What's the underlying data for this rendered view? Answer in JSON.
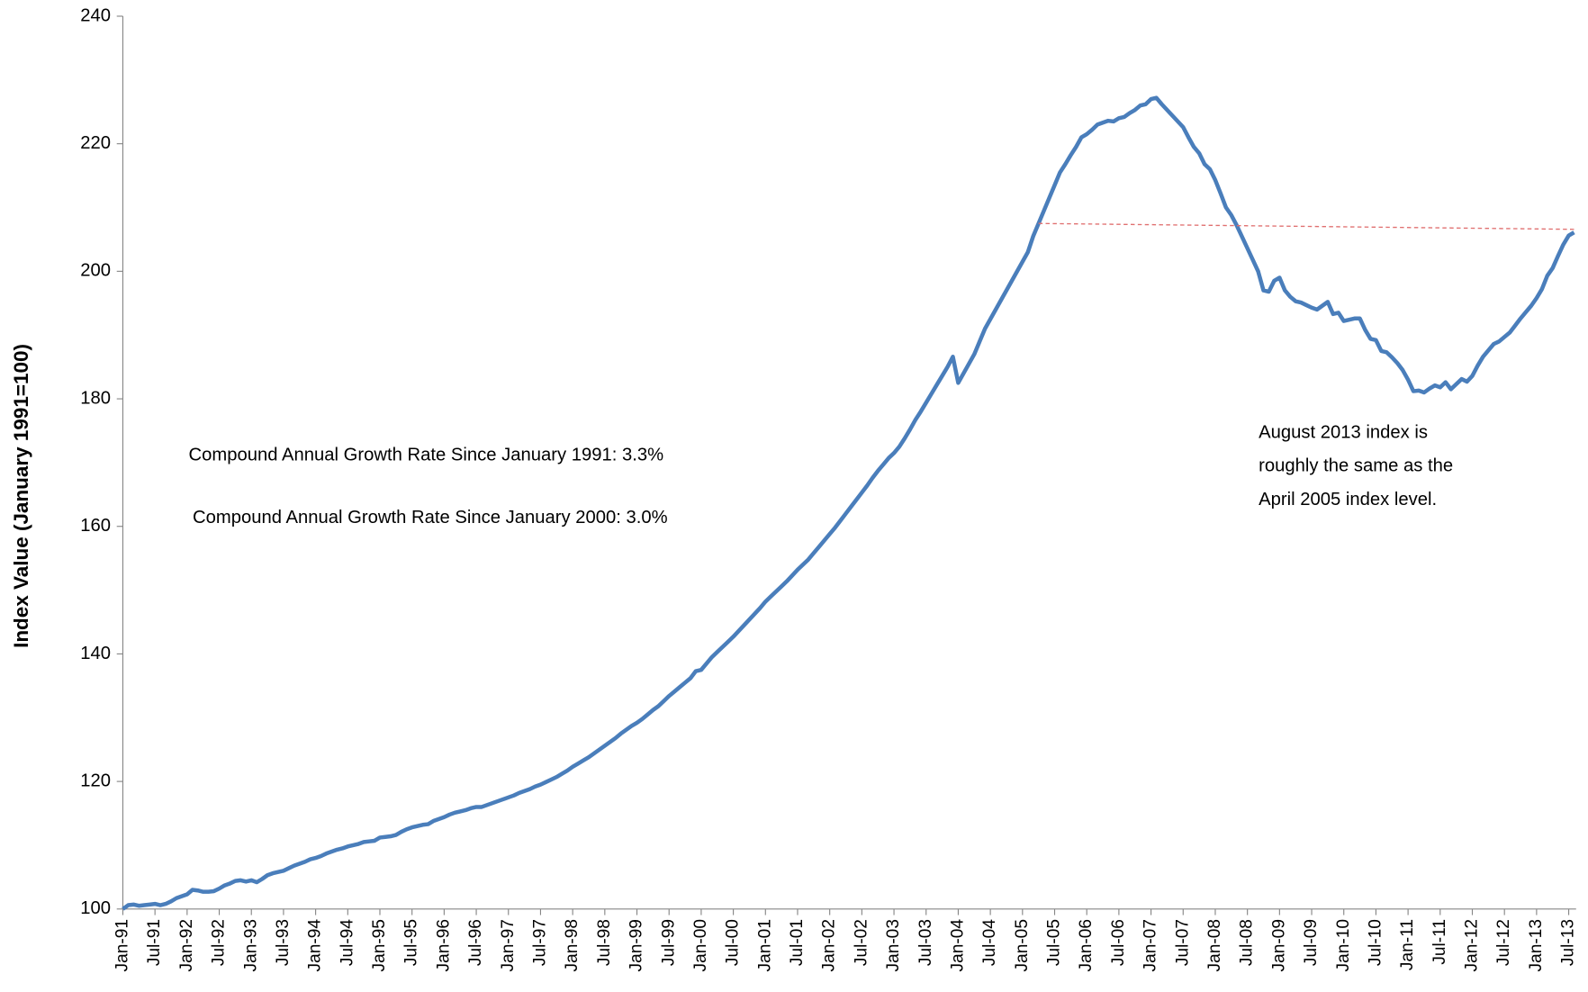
{
  "chart_data": {
    "type": "line",
    "y_label": "Index Value (January 1991=100)",
    "annotations": [
      "Compound Annual Growth Rate Since January 1991:  3.3%",
      "Compound Annual Growth Rate Since January 2000:  3.0%",
      "August 2013 index is",
      "roughly the same as the",
      "April 2005 index level."
    ],
    "ylim": [
      100,
      240
    ],
    "yticks": [
      100,
      120,
      140,
      160,
      180,
      200,
      220,
      240
    ],
    "categories": [
      "Jan-91",
      null,
      null,
      null,
      null,
      null,
      "Jul-91",
      null,
      null,
      null,
      null,
      null,
      "Jan-92",
      null,
      null,
      null,
      null,
      null,
      "Jul-92",
      null,
      null,
      null,
      null,
      null,
      "Jan-93",
      null,
      null,
      null,
      null,
      null,
      "Jul-93",
      null,
      null,
      null,
      null,
      null,
      "Jan-94",
      null,
      null,
      null,
      null,
      null,
      "Jul-94",
      null,
      null,
      null,
      null,
      null,
      "Jan-95",
      null,
      null,
      null,
      null,
      null,
      "Jul-95",
      null,
      null,
      null,
      null,
      null,
      "Jan-96",
      null,
      null,
      null,
      null,
      null,
      "Jul-96",
      null,
      null,
      null,
      null,
      null,
      "Jan-97",
      null,
      null,
      null,
      null,
      null,
      "Jul-97",
      null,
      null,
      null,
      null,
      null,
      "Jan-98",
      null,
      null,
      null,
      null,
      null,
      "Jul-98",
      null,
      null,
      null,
      null,
      null,
      "Jan-99",
      null,
      null,
      null,
      null,
      null,
      "Jul-99",
      null,
      null,
      null,
      null,
      null,
      "Jan-00",
      null,
      null,
      null,
      null,
      null,
      "Jul-00",
      null,
      null,
      null,
      null,
      null,
      "Jan-01",
      null,
      null,
      null,
      null,
      null,
      "Jul-01",
      null,
      null,
      null,
      null,
      null,
      "Jan-02",
      null,
      null,
      null,
      null,
      null,
      "Jul-02",
      null,
      null,
      null,
      null,
      null,
      "Jan-03",
      null,
      null,
      null,
      null,
      null,
      "Jul-03",
      null,
      null,
      null,
      null,
      null,
      "Jan-04",
      null,
      null,
      null,
      null,
      null,
      "Jul-04",
      null,
      null,
      null,
      null,
      null,
      "Jan-05",
      null,
      null,
      null,
      null,
      null,
      "Jul-05",
      null,
      null,
      null,
      null,
      null,
      "Jan-06",
      null,
      null,
      null,
      null,
      null,
      "Jul-06",
      null,
      null,
      null,
      null,
      null,
      "Jan-07",
      null,
      null,
      null,
      null,
      null,
      "Jul-07",
      null,
      null,
      null,
      null,
      null,
      "Jan-08",
      null,
      null,
      null,
      null,
      null,
      "Jul-08",
      null,
      null,
      null,
      null,
      null,
      "Jan-09",
      null,
      null,
      null,
      null,
      null,
      "Jul-09",
      null,
      null,
      null,
      null,
      null,
      "Jan-10",
      null,
      null,
      null,
      null,
      null,
      "Jul-10",
      null,
      null,
      null,
      null,
      null,
      "Jan-11",
      null,
      null,
      null,
      null,
      null,
      "Jul-11",
      null,
      null,
      null,
      null,
      null,
      "Jan-12",
      null,
      null,
      null,
      null,
      null,
      "Jul-12",
      null,
      null,
      null,
      null,
      null,
      "Jan-13",
      null,
      null,
      null,
      null,
      null,
      "Jul-13",
      null
    ],
    "series": [
      {
        "color": "#4a7ebb",
        "values": [
          100.0,
          100.6,
          100.7,
          100.5,
          100.6,
          100.7,
          100.8,
          100.6,
          100.8,
          101.2,
          101.7,
          102.0,
          102.3,
          103.0,
          102.9,
          102.7,
          102.7,
          102.8,
          103.2,
          103.7,
          104.0,
          104.4,
          104.5,
          104.3,
          104.5,
          104.2,
          104.7,
          105.3,
          105.6,
          105.8,
          106.0,
          106.4,
          106.8,
          107.1,
          107.4,
          107.8,
          108.0,
          108.3,
          108.7,
          109.0,
          109.3,
          109.5,
          109.8,
          110.0,
          110.2,
          110.5,
          110.6,
          110.7,
          111.2,
          111.3,
          111.4,
          111.6,
          112.1,
          112.5,
          112.8,
          113.0,
          113.2,
          113.3,
          113.8,
          114.1,
          114.4,
          114.8,
          115.1,
          115.3,
          115.5,
          115.8,
          116.0,
          116.0,
          116.3,
          116.6,
          116.9,
          117.2,
          117.5,
          117.8,
          118.2,
          118.5,
          118.8,
          119.2,
          119.5,
          119.9,
          120.3,
          120.7,
          121.2,
          121.7,
          122.3,
          122.8,
          123.3,
          123.8,
          124.4,
          125.0,
          125.6,
          126.2,
          126.8,
          127.5,
          128.1,
          128.7,
          129.2,
          129.8,
          130.5,
          131.2,
          131.8,
          132.6,
          133.4,
          134.1,
          134.8,
          135.5,
          136.2,
          137.3,
          137.5,
          138.5,
          139.5,
          140.3,
          141.1,
          141.9,
          142.7,
          143.6,
          144.5,
          145.4,
          146.3,
          147.2,
          148.2,
          149.0,
          149.8,
          150.6,
          151.4,
          152.3,
          153.2,
          154.0,
          154.8,
          155.8,
          156.8,
          157.8,
          158.8,
          159.8,
          160.9,
          162.0,
          163.1,
          164.2,
          165.3,
          166.4,
          167.6,
          168.7,
          169.7,
          170.7,
          171.5,
          172.5,
          173.8,
          175.2,
          176.7,
          178.0,
          179.4,
          180.8,
          182.2,
          183.6,
          185.0,
          186.6,
          182.5,
          184.0,
          185.5,
          187.0,
          189.0,
          191.0,
          192.5,
          194.0,
          195.5,
          197.0,
          198.5,
          200.0,
          201.5,
          203.0,
          205.5,
          207.5,
          209.5,
          211.5,
          213.5,
          215.5,
          216.8,
          218.2,
          219.5,
          221.0,
          221.5,
          222.2,
          223.0,
          223.3,
          223.6,
          223.5,
          224.0,
          224.2,
          224.8,
          225.3,
          226.0,
          226.2,
          227.0,
          227.2,
          226.2,
          225.3,
          224.4,
          223.5,
          222.6,
          221.0,
          219.5,
          218.5,
          216.8,
          216.0,
          214.3,
          212.2,
          210.0,
          208.8,
          207.2,
          205.4,
          203.6,
          201.8,
          200.0,
          197.0,
          196.8,
          198.5,
          199.0,
          197.0,
          196.0,
          195.3,
          195.1,
          194.7,
          194.3,
          194.0,
          194.6,
          195.2,
          193.3,
          193.5,
          192.2,
          192.4,
          192.6,
          192.6,
          190.8,
          189.4,
          189.2,
          187.5,
          187.3,
          186.5,
          185.6,
          184.5,
          183.0,
          181.2,
          181.3,
          181.0,
          181.6,
          182.1,
          181.8,
          182.6,
          181.5,
          182.3,
          183.1,
          182.7,
          183.6,
          185.2,
          186.6,
          187.6,
          188.6,
          189.0,
          189.7,
          190.4,
          191.5,
          192.6,
          193.6,
          194.6,
          195.8,
          197.2,
          199.3,
          200.5,
          202.4,
          204.2,
          205.6,
          206.1
        ]
      }
    ]
  }
}
